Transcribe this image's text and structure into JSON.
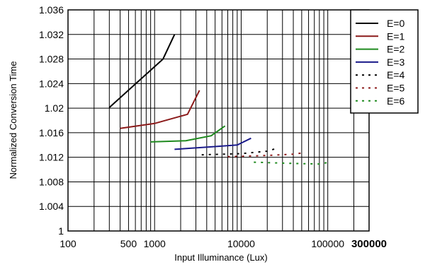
{
  "chart_data": {
    "type": "line",
    "title": "",
    "xlabel": "Input Illuminance (Lux)",
    "ylabel": "Normalized Conversion Time",
    "x_scale": "log",
    "xlim": [
      100,
      300000
    ],
    "ylim": [
      1,
      1.036
    ],
    "grid": true,
    "legend_position": "top-right",
    "x_tick_labels": [
      {
        "value": 100,
        "label": "100",
        "bold": false
      },
      {
        "value": 500,
        "label": "500",
        "bold": false
      },
      {
        "value": 1000,
        "label": "1000",
        "bold": false
      },
      {
        "value": 10000,
        "label": "10000",
        "bold": false
      },
      {
        "value": 100000,
        "label": "100000",
        "bold": false
      },
      {
        "value": 300000,
        "label": "300000",
        "bold": true
      }
    ],
    "y_tick_labels": [
      "1",
      "1.004",
      "1.008",
      "1.012",
      "1.016",
      "1.02",
      "1.024",
      "1.028",
      "1.032",
      "1.036"
    ],
    "y_tick_values": [
      1,
      1.004,
      1.008,
      1.012,
      1.016,
      1.02,
      1.024,
      1.028,
      1.032,
      1.036
    ],
    "series": [
      {
        "name": "E=0",
        "color": "#000000",
        "dash": "solid",
        "x": [
          300,
          1250,
          1700
        ],
        "y": [
          1.0201,
          1.028,
          1.032
        ]
      },
      {
        "name": "E=1",
        "color": "#8b1a1a",
        "dash": "solid",
        "x": [
          400,
          1000,
          2400,
          3300
        ],
        "y": [
          1.0167,
          1.0175,
          1.019,
          1.0229
        ]
      },
      {
        "name": "E=2",
        "color": "#1f8a1f",
        "dash": "solid",
        "x": [
          900,
          2300,
          4500,
          6500
        ],
        "y": [
          1.0145,
          1.0147,
          1.0155,
          1.0171
        ]
      },
      {
        "name": "E=3",
        "color": "#1a1a8a",
        "dash": "solid",
        "x": [
          1700,
          4500,
          9000,
          13000
        ],
        "y": [
          1.0133,
          1.0137,
          1.014,
          1.0151
        ]
      },
      {
        "name": "E=4",
        "color": "#000000",
        "dash": "dotted",
        "x": [
          3500,
          10000,
          20000,
          25000
        ],
        "y": [
          1.0124,
          1.0126,
          1.013,
          1.0134
        ]
      },
      {
        "name": "E=5",
        "color": "#8b1a1a",
        "dash": "dotted",
        "x": [
          7000,
          20000,
          40000,
          50000
        ],
        "y": [
          1.0121,
          1.0123,
          1.0125,
          1.0127
        ]
      },
      {
        "name": "E=6",
        "color": "#1f8a1f",
        "dash": "dotted",
        "x": [
          14000,
          40000,
          80000,
          105000
        ],
        "y": [
          1.0112,
          1.011,
          1.0109,
          1.0112
        ]
      }
    ]
  }
}
